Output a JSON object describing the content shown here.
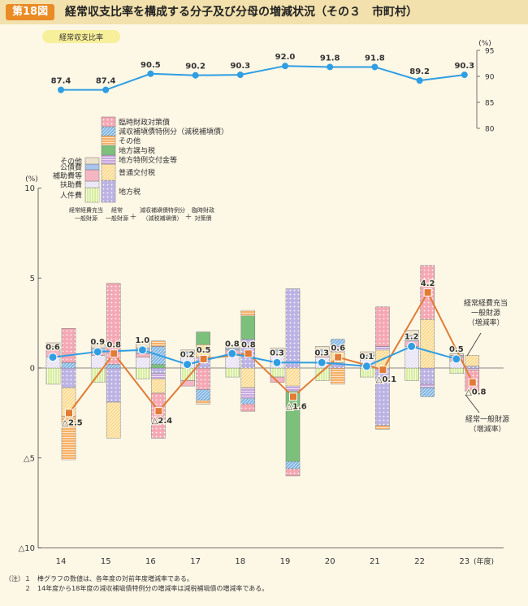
{
  "header": {
    "badge": "第18図",
    "title": "経常収支比率を構成する分子及び分母の増減状況（その３　市町村）"
  },
  "notes": [
    "（注）１　棒グラフの数値は、各年度の対前年度増減率である。",
    "　　　２　14年度から18年度の減収補塡債特例分の増減率は減税補塡債の増減率である。"
  ],
  "colors": {
    "ratio_line": "#2f9ee2",
    "general_line": "#e17b35",
    "numerator_line": "#2f9ee2"
  },
  "chart_data": [
    {
      "type": "line",
      "title": "経常収支比率",
      "unit": "(%)",
      "categories": [
        "14",
        "15",
        "16",
        "17",
        "18",
        "19",
        "20",
        "21",
        "22",
        "23"
      ],
      "values": [
        87.4,
        87.4,
        90.5,
        90.2,
        90.3,
        92.0,
        91.8,
        91.8,
        89.2,
        90.3
      ],
      "labels": [
        "87.4",
        "87.4",
        "90.5",
        "90.2",
        "90.3",
        "92.0",
        "91.8",
        "91.8",
        "89.2",
        "90.3"
      ],
      "ylim": [
        80,
        95
      ],
      "yticks": [
        "80",
        "85",
        "90",
        "95"
      ]
    },
    {
      "type": "bar",
      "stacked": true,
      "ylabel": "(%)",
      "xlabel": "(年度)",
      "categories": [
        "14",
        "15",
        "16",
        "17",
        "18",
        "19",
        "20",
        "21",
        "22",
        "23"
      ],
      "ylim": [
        -10,
        10
      ],
      "yticks": [
        "△10",
        "△5",
        "0",
        "5",
        "10"
      ],
      "legend_key": {
        "numerator_left": "経常経費充当一般財源",
        "denominator_left": "経常一般財源",
        "genzei_mid": "減収補塡債特例分（減税補塡債）",
        "rinji_right": "臨時財政対策債"
      },
      "numerator_components": [
        {
          "name": "人件費",
          "color": "#d8ee9e",
          "pattern": "vlines"
        },
        {
          "name": "扶助費",
          "color": "#e7e1f4",
          "pattern": "hatch"
        },
        {
          "name": "補助費等",
          "color": "#f5b6c4",
          "pattern": "none"
        },
        {
          "name": "公債費",
          "color": "#a9c5ec",
          "pattern": "none"
        },
        {
          "name": "その他",
          "color": "#ede2cb",
          "pattern": "none"
        }
      ],
      "denominator_components": [
        {
          "name": "地方税",
          "color": "#bcb3e4",
          "pattern": "dots"
        },
        {
          "name": "普通交付税",
          "color": "#fbd98a",
          "pattern": "hatch"
        },
        {
          "name": "地方特例交付金等",
          "color": "#c9a7dd",
          "pattern": "hlines"
        },
        {
          "name": "地方譲与税",
          "color": "#7cc07c",
          "pattern": "none"
        },
        {
          "name": "その他",
          "color": "#f6b167",
          "pattern": "hlines"
        },
        {
          "name": "減収補塡債特例分（減税補塡債）",
          "color": "#7bb3e3",
          "pattern": "hatch"
        },
        {
          "name": "臨時財政対策債",
          "color": "#f4a8b4",
          "pattern": "dots"
        }
      ],
      "numerator_bars": [
        {
          "year": "14",
          "segments": [
            {
              "c": "人件費",
              "v": -0.9
            },
            {
              "c": "扶助費",
              "v": 0.6
            },
            {
              "c": "補助費等",
              "v": 0.4
            },
            {
              "c": "公債費",
              "v": 0.2
            },
            {
              "c": "その他",
              "v": 0.2
            }
          ]
        },
        {
          "year": "15",
          "segments": [
            {
              "c": "人件費",
              "v": -0.8
            },
            {
              "c": "扶助費",
              "v": 0.7
            },
            {
              "c": "補助費等",
              "v": 0.2
            },
            {
              "c": "公債費",
              "v": 0.2
            },
            {
              "c": "その他",
              "v": 0.2
            }
          ]
        },
        {
          "year": "16",
          "segments": [
            {
              "c": "人件費",
              "v": -0.6
            },
            {
              "c": "扶助費",
              "v": 0.6
            },
            {
              "c": "補助費等",
              "v": 0.2
            },
            {
              "c": "公債費",
              "v": 0.3
            },
            {
              "c": "その他",
              "v": 0.4
            }
          ]
        },
        {
          "year": "17",
          "segments": [
            {
              "c": "人件費",
              "v": -0.7
            },
            {
              "c": "補助費等",
              "v": -0.3
            },
            {
              "c": "扶助費",
              "v": 0.7
            },
            {
              "c": "公債費",
              "v": 0.2
            },
            {
              "c": "その他",
              "v": 0.1
            }
          ]
        },
        {
          "year": "18",
          "segments": [
            {
              "c": "人件費",
              "v": -0.5
            },
            {
              "c": "扶助費",
              "v": 0.7
            },
            {
              "c": "補助費等",
              "v": 0.3
            },
            {
              "c": "公債費",
              "v": 0.1
            },
            {
              "c": "その他",
              "v": 0.2
            }
          ]
        },
        {
          "year": "19",
          "segments": [
            {
              "c": "人件費",
              "v": -0.5
            },
            {
              "c": "補助費等",
              "v": -0.3
            },
            {
              "c": "扶助費",
              "v": 0.8
            },
            {
              "c": "公債費",
              "v": 0.2
            },
            {
              "c": "その他",
              "v": 0.1
            }
          ]
        },
        {
          "year": "20",
          "segments": [
            {
              "c": "人件費",
              "v": -0.7
            },
            {
              "c": "扶助費",
              "v": 0.6
            },
            {
              "c": "補助費等",
              "v": 0.2
            },
            {
              "c": "公債費",
              "v": 0.2
            },
            {
              "c": "その他",
              "v": 0.2
            }
          ]
        },
        {
          "year": "21",
          "segments": [
            {
              "c": "人件費",
              "v": -0.5
            },
            {
              "c": "扶助費",
              "v": 0.5
            },
            {
              "c": "補助費等",
              "v": 0.1
            },
            {
              "c": "公債費",
              "v": 0.1
            },
            {
              "c": "その他",
              "v": 0.2
            }
          ]
        },
        {
          "year": "22",
          "segments": [
            {
              "c": "人件費",
              "v": -0.7
            },
            {
              "c": "扶助費",
              "v": 1.2
            },
            {
              "c": "補助費等",
              "v": 0.3
            },
            {
              "c": "公債費",
              "v": 0.3
            },
            {
              "c": "その他",
              "v": 0.3
            }
          ]
        },
        {
          "year": "23",
          "segments": [
            {
              "c": "人件費",
              "v": -0.3
            },
            {
              "c": "扶助費",
              "v": 0.4
            },
            {
              "c": "補助費等",
              "v": 0.2
            },
            {
              "c": "公債費",
              "v": 0.1
            },
            {
              "c": "その他",
              "v": 0.1
            }
          ]
        }
      ],
      "denominator_bars": [
        {
          "year": "14",
          "segments": [
            {
              "c": "地方税",
              "v": -1.1
            },
            {
              "c": "普通交付税",
              "v": -1.6
            },
            {
              "c": "その他",
              "v": -2.4
            },
            {
              "c": "減収補塡債特例分（減税補塡債）",
              "v": 0.3
            },
            {
              "c": "臨時財政対策債",
              "v": 1.9
            }
          ]
        },
        {
          "year": "15",
          "segments": [
            {
              "c": "地方税",
              "v": -1.9
            },
            {
              "c": "普通交付税",
              "v": -2.0
            },
            {
              "c": "減収補塡債特例分（減税補塡債）",
              "v": 0.2
            },
            {
              "c": "臨時財政対策債",
              "v": 4.5
            }
          ]
        },
        {
          "year": "16",
          "segments": [
            {
              "c": "地方税",
              "v": -0.3
            },
            {
              "c": "地方特例交付金等",
              "v": -0.3
            },
            {
              "c": "普通交付税",
              "v": -0.8
            },
            {
              "c": "臨時財政対策債",
              "v": -2.5
            },
            {
              "c": "地方譲与税",
              "v": 0.2
            },
            {
              "c": "減収補塡債特例分（減税補塡債）",
              "v": 1.0
            },
            {
              "c": "その他",
              "v": 0.3
            }
          ]
        },
        {
          "year": "17",
          "segments": [
            {
              "c": "臨時財政対策債",
              "v": -1.2
            },
            {
              "c": "減収補塡債特例分（減税補塡債）",
              "v": -0.6
            },
            {
              "c": "その他",
              "v": -0.2
            },
            {
              "c": "地方税",
              "v": 0.6
            },
            {
              "c": "普通交付税",
              "v": 0.7
            },
            {
              "c": "地方譲与税",
              "v": 0.7
            }
          ]
        },
        {
          "year": "18",
          "segments": [
            {
              "c": "普通交付税",
              "v": -1.1
            },
            {
              "c": "地方特例交付金等",
              "v": -0.6
            },
            {
              "c": "減収補塡債特例分（減税補塡債）",
              "v": -0.3
            },
            {
              "c": "臨時財政対策債",
              "v": -0.4
            },
            {
              "c": "地方税",
              "v": 1.6
            },
            {
              "c": "地方譲与税",
              "v": 1.3
            },
            {
              "c": "その他",
              "v": 0.3
            }
          ]
        },
        {
          "year": "19",
          "segments": [
            {
              "c": "普通交付税",
              "v": -1.0
            },
            {
              "c": "地方特例交付金等",
              "v": -0.3
            },
            {
              "c": "地方譲与税",
              "v": -3.9
            },
            {
              "c": "減収補塡債特例分（減税補塡債）",
              "v": -0.4
            },
            {
              "c": "臨時財政対策債",
              "v": -0.4
            },
            {
              "c": "地方税",
              "v": 4.4
            }
          ]
        },
        {
          "year": "20",
          "segments": [
            {
              "c": "その他",
              "v": -0.9
            },
            {
              "c": "地方税",
              "v": 0.3
            },
            {
              "c": "普通交付税",
              "v": 0.6
            },
            {
              "c": "地方特例交付金等",
              "v": 0.3
            },
            {
              "c": "減収補塡債特例分（減税補塡債）",
              "v": 0.4
            }
          ]
        },
        {
          "year": "21",
          "segments": [
            {
              "c": "地方税",
              "v": -3.2
            },
            {
              "c": "その他",
              "v": -0.2
            },
            {
              "c": "普通交付税",
              "v": 1.0
            },
            {
              "c": "地方特例交付金等",
              "v": 0.2
            },
            {
              "c": "臨時財政対策債",
              "v": 2.2
            }
          ]
        },
        {
          "year": "22",
          "segments": [
            {
              "c": "地方税",
              "v": -0.9
            },
            {
              "c": "地方特例交付金等",
              "v": -0.2
            },
            {
              "c": "減収補塡債特例分（減税補塡債）",
              "v": -0.5
            },
            {
              "c": "普通交付税",
              "v": 2.7
            },
            {
              "c": "臨時財政対策債",
              "v": 3.0
            }
          ]
        },
        {
          "year": "23",
          "segments": [
            {
              "c": "地方特例交付金等",
              "v": -0.1
            },
            {
              "c": "臨時財政対策債",
              "v": -1.2
            },
            {
              "c": "地方税",
              "v": 0.1
            },
            {
              "c": "普通交付税",
              "v": 0.6
            }
          ]
        }
      ],
      "series": [
        {
          "name": "経常経費充当一般財源（増減率）",
          "values": [
            0.6,
            0.9,
            1.0,
            0.2,
            0.8,
            0.3,
            0.3,
            0.1,
            1.2,
            0.5
          ],
          "labels": [
            "0.6",
            "0.9",
            "1.0",
            "0.2",
            "0.8",
            "0.3",
            "0.3",
            "0.1",
            "1.2",
            "0.5"
          ]
        },
        {
          "name": "経常一般財源（増減率）",
          "values": [
            -2.5,
            0.8,
            -2.4,
            0.5,
            0.8,
            -1.6,
            0.6,
            -0.1,
            4.2,
            -0.8
          ],
          "labels": [
            "△2.5",
            "0.8",
            "△2.4",
            "0.5",
            "0.8",
            "△1.6",
            "0.6",
            "△0.1",
            "4.2",
            "△0.8"
          ]
        }
      ],
      "callouts": {
        "numerator": [
          "経常経費充当",
          "一般財源",
          "（増減率）"
        ],
        "denominator": [
          "経常一般財源",
          "（増減率）"
        ]
      }
    }
  ]
}
